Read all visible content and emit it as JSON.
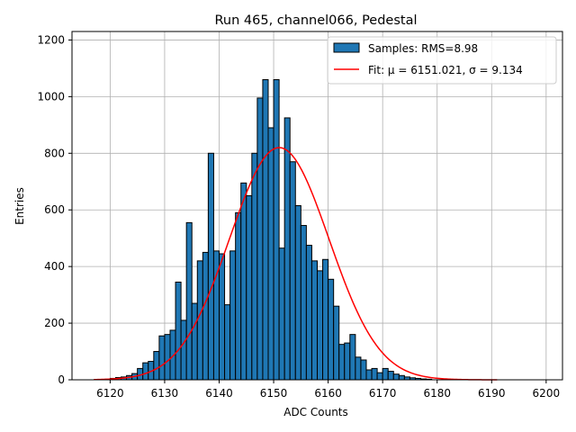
{
  "chart_data": {
    "type": "bar",
    "title": "Run 465, channel066, Pedestal",
    "xlabel": "ADC Counts",
    "ylabel": "Entries",
    "xlim": [
      6113,
      6203
    ],
    "ylim": [
      0,
      1230
    ],
    "xticks": [
      6120,
      6130,
      6140,
      6150,
      6160,
      6170,
      6180,
      6190,
      6200
    ],
    "yticks": [
      0,
      200,
      400,
      600,
      800,
      1000,
      1200
    ],
    "grid": true,
    "legend_position": "top-right",
    "histogram": {
      "name": "Samples: RMS=8.98",
      "color": "#1f77b4",
      "edgecolor": "#000000",
      "bin_start": 6119,
      "bin_width": 1,
      "values": [
        2,
        5,
        8,
        10,
        15,
        22,
        40,
        60,
        65,
        100,
        155,
        160,
        175,
        345,
        210,
        555,
        270,
        420,
        450,
        800,
        455,
        445,
        265,
        455,
        590,
        695,
        650,
        800,
        995,
        1060,
        890,
        1060,
        465,
        925,
        770,
        615,
        545,
        475,
        420,
        385,
        425,
        355,
        260,
        125,
        130,
        160,
        80,
        70,
        35,
        40,
        25,
        40,
        30,
        20,
        15,
        10,
        7,
        5,
        3,
        2
      ]
    },
    "fit": {
      "name": "Fit: μ = 6151.021, σ = 9.134",
      "color": "#ff0000",
      "mu": 6151.021,
      "sigma": 9.134,
      "amplitude": 820,
      "x_range": [
        6117,
        6191
      ]
    }
  }
}
